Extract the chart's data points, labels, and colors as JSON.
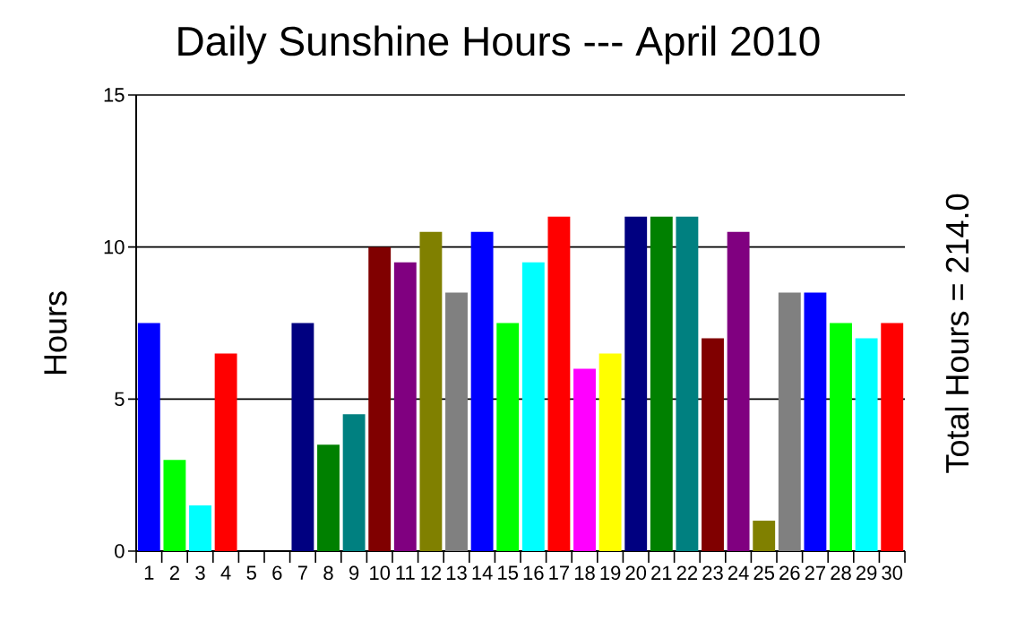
{
  "chart_data": {
    "type": "bar",
    "title": "Daily Sunshine Hours --- April 2010",
    "ylabel": "Hours",
    "annotations": [
      "Total Hours = 214.0"
    ],
    "categories": [
      "1",
      "2",
      "3",
      "4",
      "5",
      "6",
      "7",
      "8",
      "9",
      "10",
      "11",
      "12",
      "13",
      "14",
      "15",
      "16",
      "17",
      "18",
      "19",
      "20",
      "21",
      "22",
      "23",
      "24",
      "25",
      "26",
      "27",
      "28",
      "29",
      "30"
    ],
    "values": [
      7.5,
      3,
      1.5,
      6.5,
      0,
      0,
      7.5,
      3.5,
      4.5,
      10,
      9.5,
      10.5,
      8.5,
      10.5,
      7.5,
      9.5,
      11,
      6,
      6.5,
      11,
      11,
      11,
      7,
      10.5,
      1,
      8.5,
      8.5,
      7.5,
      7,
      7.5
    ],
    "colors": [
      "#0000ff",
      "#00ff00",
      "#00ffff",
      "#ff0000",
      "#ff00ff",
      "#ffff00",
      "#000080",
      "#008000",
      "#008080",
      "#800000",
      "#800080",
      "#808000",
      "#808080",
      "#0000ff",
      "#00ff00",
      "#00ffff",
      "#ff0000",
      "#ff00ff",
      "#ffff00",
      "#000080",
      "#008000",
      "#008080",
      "#800000",
      "#800080",
      "#808000",
      "#808080",
      "#0000ff",
      "#00ff00",
      "#00ffff",
      "#ff0000"
    ],
    "ylim": [
      0,
      15
    ],
    "yticks": [
      0,
      5,
      10,
      15
    ],
    "grid": "y"
  }
}
